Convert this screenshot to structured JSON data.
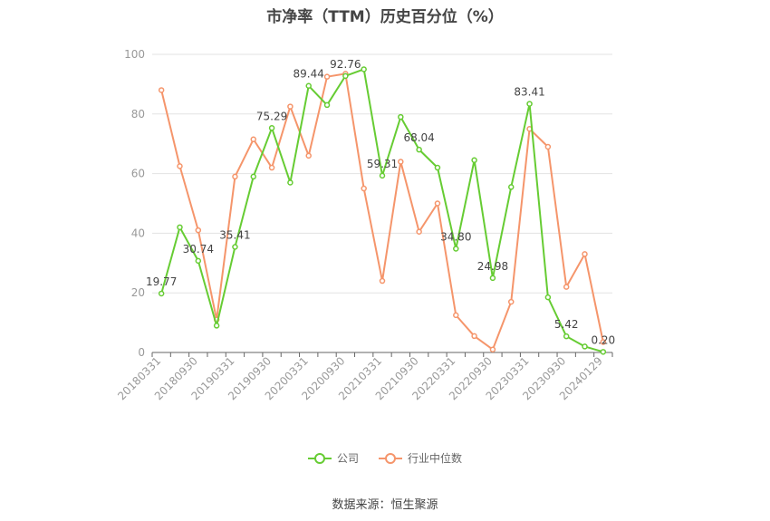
{
  "title": "市净率（TTM）历史百分位（%）",
  "source": "数据来源：恒生聚源",
  "colors": {
    "company": "#66cc33",
    "industry": "#f5956b",
    "grid": "#e3e3e3",
    "axis": "#999999"
  },
  "chart_data": {
    "type": "line",
    "title": "市净率（TTM）历史百分位（%）",
    "xlabel": "",
    "ylabel": "",
    "ylim": [
      0,
      100
    ],
    "yticks": [
      0,
      20,
      40,
      60,
      80,
      100
    ],
    "grid": true,
    "legend_position": "bottom",
    "x": [
      "20180331",
      "20180630",
      "20180930",
      "20181231",
      "20190331",
      "20190630",
      "20190930",
      "20191231",
      "20200331",
      "20200630",
      "20200930",
      "20201231",
      "20210331",
      "20210630",
      "20210930",
      "20211231",
      "20220331",
      "20220630",
      "20220930",
      "20221231",
      "20230331",
      "20230630",
      "20230930",
      "20231231",
      "20240129"
    ],
    "xtick_labels": [
      "20180331",
      "20180930",
      "20190331",
      "20190930",
      "20200331",
      "20200930",
      "20210331",
      "20210930",
      "20220331",
      "20220930",
      "20230331",
      "20230930",
      "20240129"
    ],
    "series": [
      {
        "name": "公司",
        "color": "#66cc33",
        "values": [
          19.77,
          42,
          30.74,
          9,
          35.41,
          59,
          75.29,
          57,
          89.44,
          83,
          92.76,
          95,
          59.31,
          79,
          68.04,
          62,
          34.8,
          64.5,
          24.98,
          55.5,
          83.41,
          18.5,
          5.42,
          2,
          0.2
        ],
        "labels": {
          "0": "19.77",
          "2": "30.74",
          "4": "35.41",
          "6": "75.29",
          "8": "89.44",
          "10": "92.76",
          "12": "59.31",
          "14": "68.04",
          "16": "34.80",
          "18": "24.98",
          "20": "83.41",
          "22": "5.42",
          "24": "0.20"
        }
      },
      {
        "name": "行业中位数",
        "color": "#f5956b",
        "values": [
          88,
          62.5,
          41,
          11,
          59,
          71.5,
          62,
          82.5,
          66,
          92.5,
          93.5,
          55,
          24,
          64,
          40.5,
          50,
          12.5,
          5.5,
          1,
          17,
          75,
          69,
          22,
          33,
          3.5
        ]
      }
    ]
  }
}
